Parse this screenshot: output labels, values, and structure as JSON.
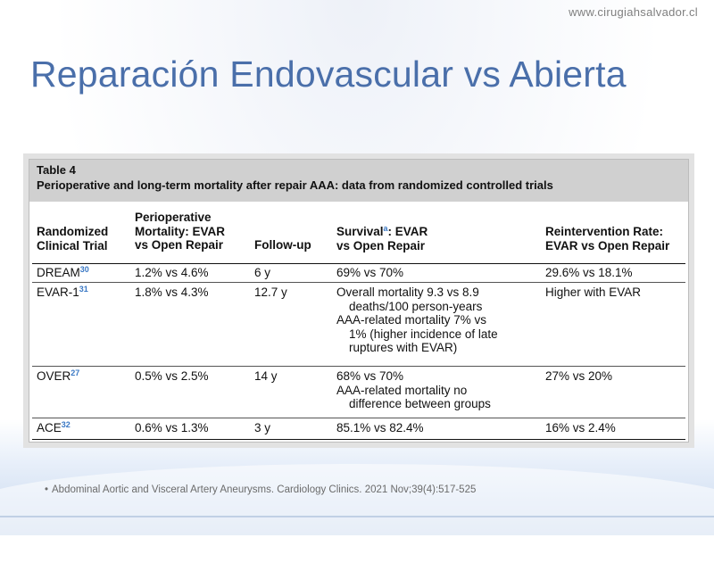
{
  "slide": {
    "website": "www.cirugiahsalvador.cl",
    "title": "Reparación Endovascular vs Abierta",
    "citation": "Abdominal Aortic and Visceral Artery Aneurysms. Cardiology Clinics. 2021 Nov;39(4):517-525",
    "bullet": "•"
  },
  "table": {
    "label": "Table 4",
    "caption": "Perioperative and long-term mortality after repair AAA: data from randomized controlled trials",
    "headers": {
      "col1": [
        "Randomized",
        "Clinical Trial"
      ],
      "col2": [
        "Perioperative",
        "Mortality: EVAR",
        "vs Open Repair"
      ],
      "col3": [
        "Follow-up"
      ],
      "col4_pre": "Survival",
      "col4_sup": "a",
      "col4_post": ": EVAR",
      "col4_line2": "vs Open Repair",
      "col5": [
        "Reintervention Rate:",
        "EVAR vs Open Repair"
      ]
    },
    "rows": [
      {
        "trial": "DREAM",
        "ref": "30",
        "mortality": "1.2% vs 4.6%",
        "followup": "6 y",
        "survival": [
          "69% vs 70%"
        ],
        "reintervention": "29.6% vs 18.1%"
      },
      {
        "trial": "EVAR-1",
        "ref": "31",
        "mortality": "1.8% vs 4.3%",
        "followup": "12.7 y",
        "survival": [
          "Overall mortality 9.3 vs 8.9",
          "deaths/100 person-years",
          "AAA-related mortality 7% vs",
          "1% (higher incidence of late",
          "ruptures with EVAR)"
        ],
        "reintervention": "Higher with EVAR"
      },
      {
        "trial": "OVER",
        "ref": "27",
        "mortality": "0.5% vs 2.5%",
        "followup": "14 y",
        "survival": [
          "68% vs 70%",
          "AAA-related mortality no",
          "difference between groups"
        ],
        "reintervention": "27% vs 20%"
      },
      {
        "trial": "ACE",
        "ref": "32",
        "mortality": "0.6% vs 1.3%",
        "followup": "3 y",
        "survival": [
          "85.1% vs 82.4%"
        ],
        "reintervention": "16% vs 2.4%"
      }
    ]
  }
}
